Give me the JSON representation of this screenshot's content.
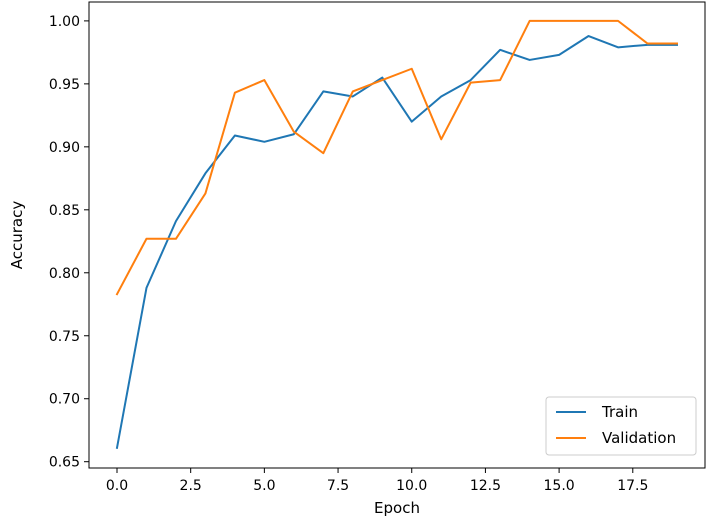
{
  "chart_data": {
    "type": "line",
    "title": "",
    "xlabel": "Epoch",
    "ylabel": "Accuracy",
    "xlim": [
      -0.95,
      19.95
    ],
    "ylim": [
      0.645,
      1.015
    ],
    "xticks": [
      0.0,
      2.5,
      5.0,
      7.5,
      10.0,
      12.5,
      15.0,
      17.5
    ],
    "xtick_labels": [
      "0.0",
      "2.5",
      "5.0",
      "7.5",
      "10.0",
      "12.5",
      "15.0",
      "17.5"
    ],
    "yticks": [
      0.65,
      0.7,
      0.75,
      0.8,
      0.85,
      0.9,
      0.95,
      1.0
    ],
    "ytick_labels": [
      "0.65",
      "0.70",
      "0.75",
      "0.80",
      "0.85",
      "0.90",
      "0.95",
      "1.00"
    ],
    "grid": false,
    "legend_position": "lower-right",
    "x": [
      0,
      1,
      2,
      3,
      4,
      5,
      6,
      7,
      8,
      9,
      10,
      11,
      12,
      13,
      14,
      15,
      16,
      17,
      18,
      19
    ],
    "series": [
      {
        "name": "Train",
        "color": "#1f77b4",
        "values": [
          0.661,
          0.788,
          0.841,
          0.879,
          0.909,
          0.904,
          0.91,
          0.944,
          0.94,
          0.955,
          0.92,
          0.94,
          0.953,
          0.977,
          0.969,
          0.973,
          0.988,
          0.979,
          0.981,
          0.981
        ]
      },
      {
        "name": "Validation",
        "color": "#ff7f0e",
        "values": [
          0.783,
          0.827,
          0.827,
          0.863,
          0.943,
          0.953,
          0.912,
          0.895,
          0.944,
          0.953,
          0.962,
          0.906,
          0.951,
          0.953,
          1.0,
          1.0,
          1.0,
          1.0,
          0.982,
          0.982
        ]
      }
    ]
  }
}
